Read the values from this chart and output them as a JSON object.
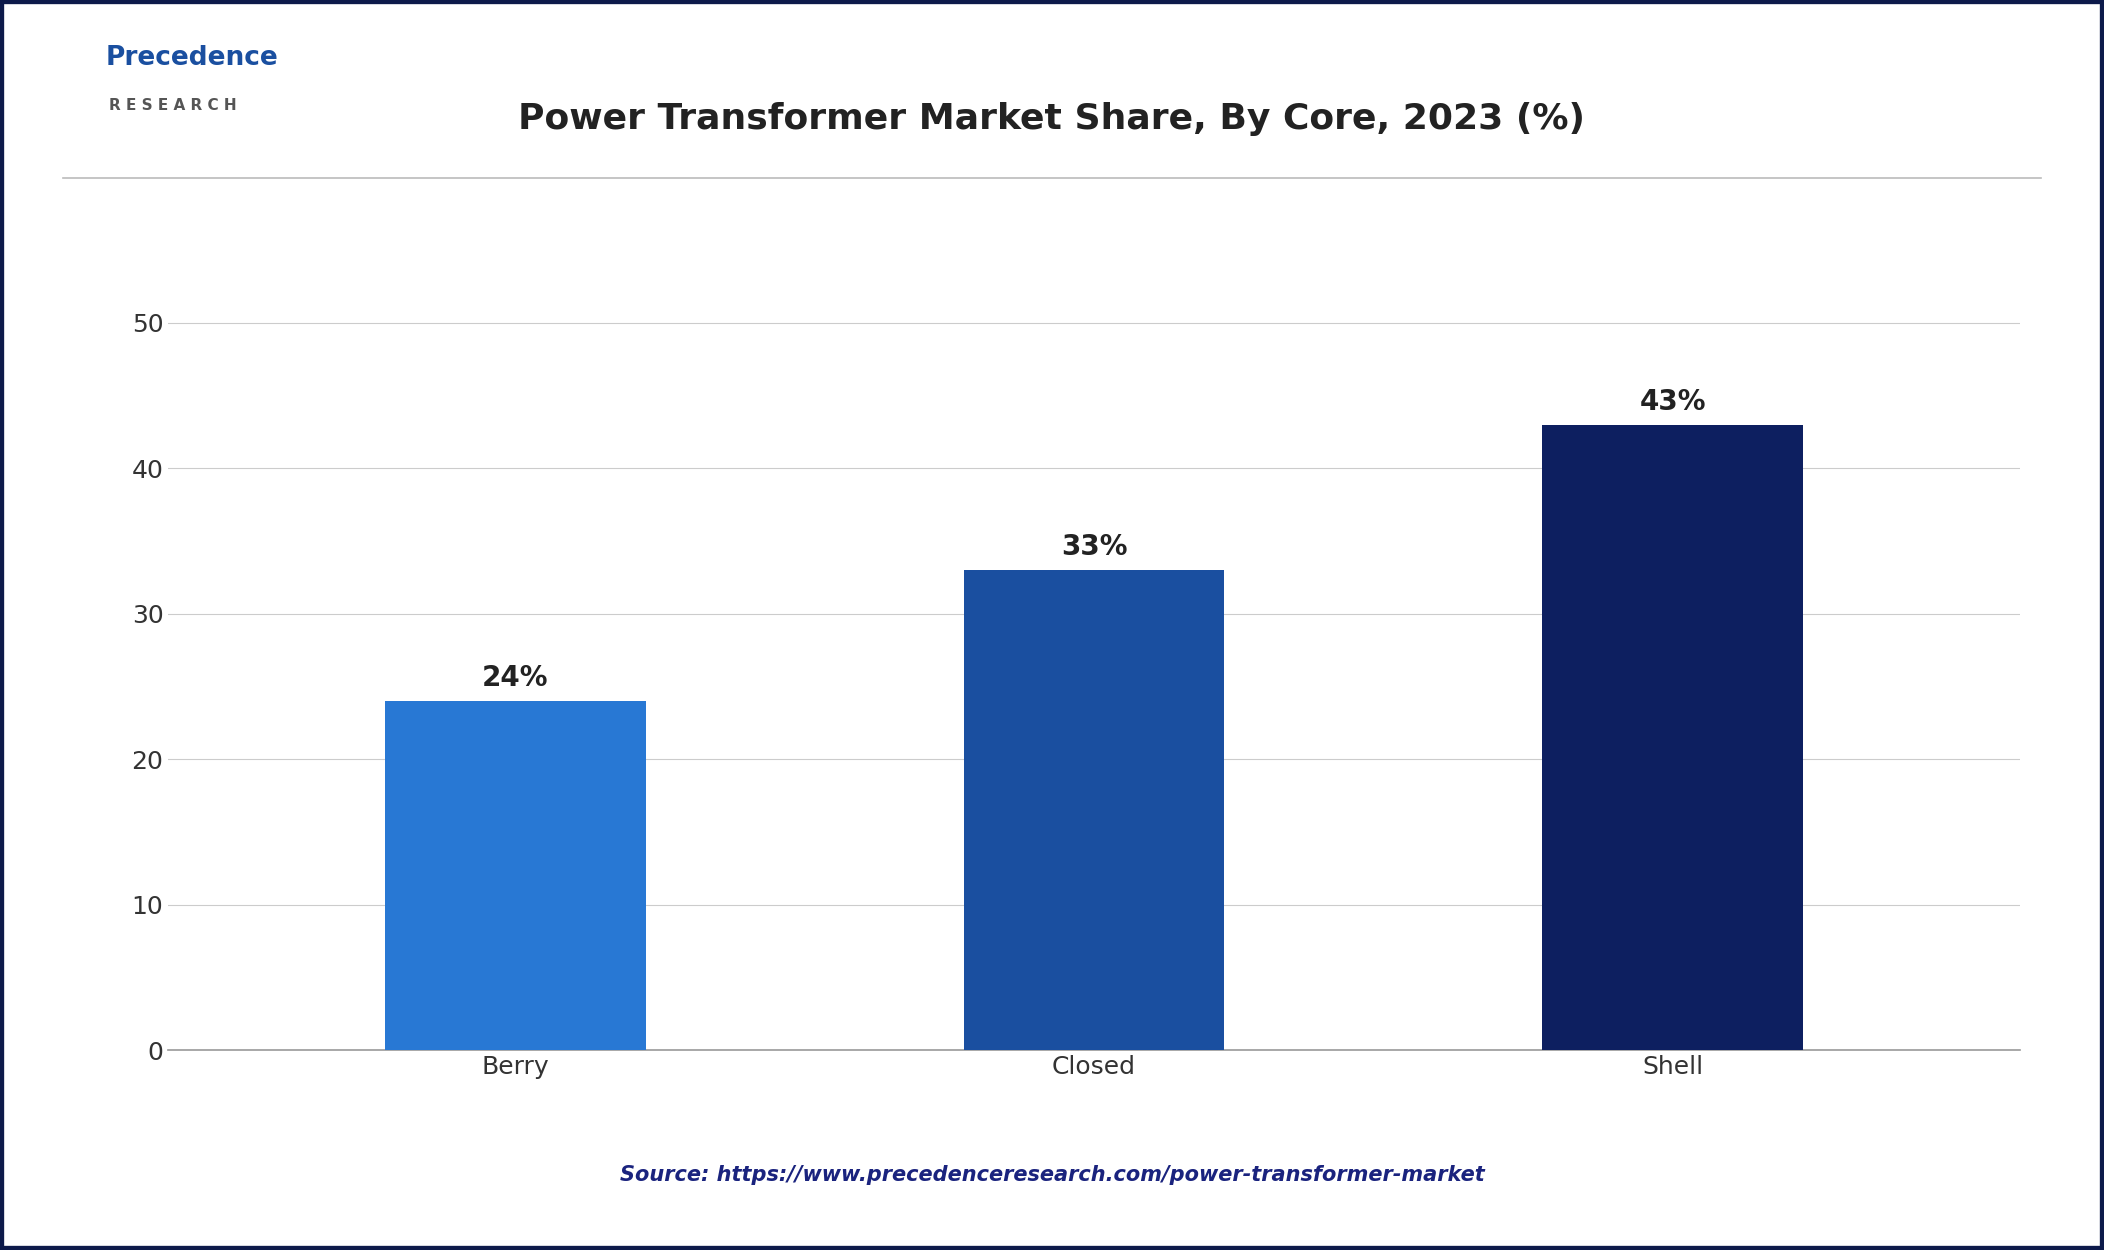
{
  "title": "Power Transformer Market Share, By Core, 2023 (%)",
  "categories": [
    "Berry",
    "Closed",
    "Shell"
  ],
  "values": [
    24,
    33,
    43
  ],
  "bar_colors": [
    "#2878d4",
    "#1a4fa0",
    "#0d1f60"
  ],
  "labels": [
    "24%",
    "33%",
    "43%"
  ],
  "ylim": [
    0,
    55
  ],
  "yticks": [
    0,
    10,
    20,
    30,
    40,
    50
  ],
  "background_color": "#ffffff",
  "title_fontsize": 26,
  "tick_fontsize": 18,
  "label_fontsize": 20,
  "source_text": "Source: https://www.precedenceresearch.com/power-transformer-market",
  "source_color": "#1a237e",
  "border_color": "#0d1a4a",
  "grid_color": "#cccccc",
  "logo_precedence_color": "#1a4fa0",
  "logo_research_color": "#555555"
}
